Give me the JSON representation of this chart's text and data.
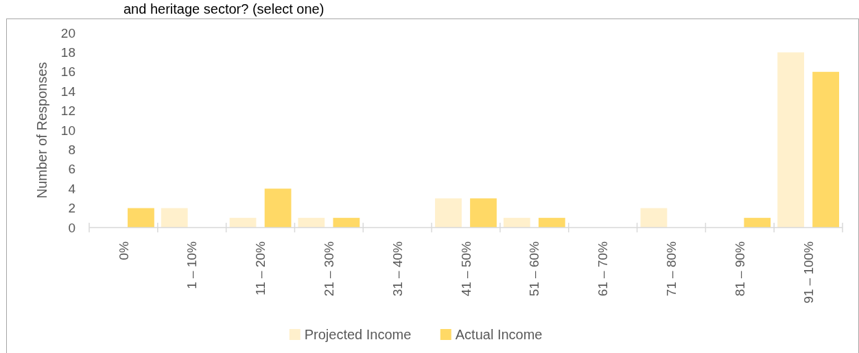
{
  "chart_data": {
    "type": "bar",
    "title": "and heritage sector? (select one)",
    "ylabel": "Number of Responses",
    "categories": [
      "0%",
      "1 – 10%",
      "11 – 20%",
      "21 – 30%",
      "31 – 40%",
      "41 – 50%",
      "51 – 60%",
      "61 – 70%",
      "71 – 80%",
      "81 – 90%",
      "91 – 100%"
    ],
    "series": [
      {
        "name": "Projected Income",
        "color": "#fff0cc",
        "values": [
          0,
          2,
          1,
          1,
          0,
          3,
          1,
          0,
          2,
          0,
          18
        ]
      },
      {
        "name": "Actual Income",
        "color": "#ffd966",
        "values": [
          2,
          0,
          4,
          1,
          0,
          3,
          1,
          0,
          0,
          1,
          16
        ]
      }
    ],
    "ylim": [
      0,
      20
    ],
    "yticks": [
      0,
      2,
      4,
      6,
      8,
      10,
      12,
      14,
      16,
      18,
      20
    ],
    "grid": false,
    "legend": "bottom"
  }
}
